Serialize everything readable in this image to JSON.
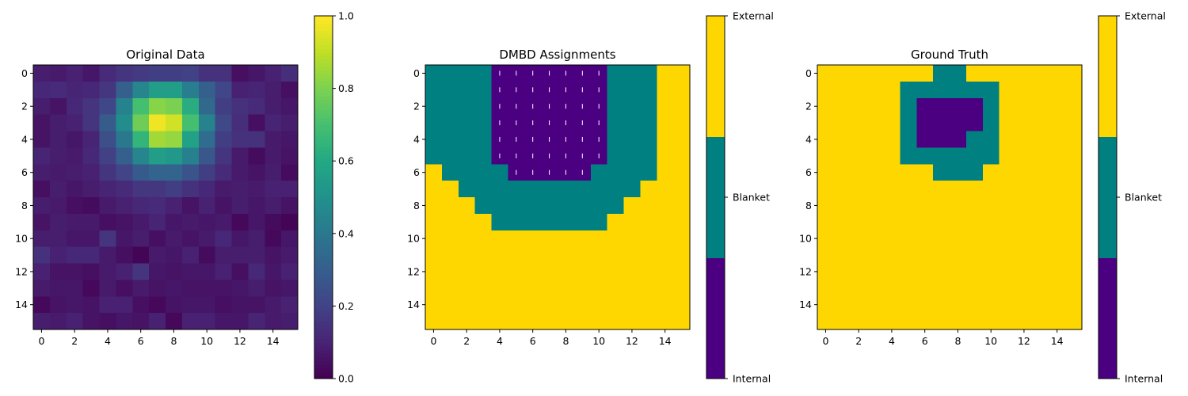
{
  "chart_data": [
    {
      "type": "heatmap",
      "title": "Original Data",
      "x_ticks": [
        0,
        2,
        4,
        6,
        8,
        10,
        12,
        14
      ],
      "y_ticks": [
        0,
        2,
        4,
        6,
        8,
        10,
        12,
        14
      ],
      "xlim": [
        -0.5,
        15.5
      ],
      "ylim": [
        15.5,
        -0.5
      ],
      "colormap": "viridis",
      "colorbar": {
        "range": [
          0,
          1
        ],
        "ticks": [
          "0.0",
          "0.2",
          "0.4",
          "0.6",
          "0.8",
          "1.0"
        ]
      },
      "values": [
        [
          0.08,
          0.07,
          0.09,
          0.06,
          0.12,
          0.15,
          0.17,
          0.18,
          0.18,
          0.19,
          0.14,
          0.14,
          0.04,
          0.06,
          0.09,
          0.13
        ],
        [
          0.11,
          0.12,
          0.1,
          0.11,
          0.16,
          0.3,
          0.45,
          0.55,
          0.55,
          0.42,
          0.3,
          0.21,
          0.09,
          0.1,
          0.08,
          0.04
        ],
        [
          0.08,
          0.05,
          0.11,
          0.15,
          0.21,
          0.44,
          0.7,
          0.82,
          0.8,
          0.62,
          0.34,
          0.18,
          0.14,
          0.12,
          0.08,
          0.06
        ],
        [
          0.05,
          0.08,
          0.09,
          0.15,
          0.29,
          0.48,
          0.78,
          0.98,
          0.93,
          0.7,
          0.44,
          0.22,
          0.13,
          0.04,
          0.1,
          0.08
        ],
        [
          0.05,
          0.08,
          0.06,
          0.1,
          0.24,
          0.4,
          0.65,
          0.86,
          0.84,
          0.57,
          0.35,
          0.18,
          0.14,
          0.14,
          0.07,
          0.06
        ],
        [
          0.1,
          0.08,
          0.07,
          0.11,
          0.19,
          0.3,
          0.45,
          0.55,
          0.53,
          0.43,
          0.27,
          0.15,
          0.07,
          0.03,
          0.07,
          0.05
        ],
        [
          0.08,
          0.07,
          0.08,
          0.09,
          0.15,
          0.2,
          0.28,
          0.32,
          0.32,
          0.26,
          0.18,
          0.12,
          0.07,
          0.05,
          0.08,
          0.03
        ],
        [
          0.04,
          0.08,
          0.06,
          0.08,
          0.1,
          0.12,
          0.16,
          0.16,
          0.18,
          0.14,
          0.11,
          0.07,
          0.08,
          0.07,
          0.09,
          0.09
        ],
        [
          0.08,
          0.07,
          0.04,
          0.03,
          0.07,
          0.09,
          0.11,
          0.12,
          0.09,
          0.05,
          0.09,
          0.05,
          0.08,
          0.06,
          0.08,
          0.05
        ],
        [
          0.05,
          0.08,
          0.07,
          0.07,
          0.04,
          0.05,
          0.07,
          0.1,
          0.06,
          0.07,
          0.06,
          0.07,
          0.02,
          0.06,
          0.03,
          0.01
        ],
        [
          0.08,
          0.08,
          0.06,
          0.06,
          0.15,
          0.06,
          0.08,
          0.04,
          0.07,
          0.05,
          0.07,
          0.11,
          0.06,
          0.08,
          0.02,
          0.06
        ],
        [
          0.14,
          0.09,
          0.11,
          0.11,
          0.07,
          0.04,
          0.01,
          0.07,
          0.06,
          0.09,
          0.03,
          0.08,
          0.08,
          0.08,
          0.05,
          0.07
        ],
        [
          0.09,
          0.05,
          0.05,
          0.04,
          0.07,
          0.09,
          0.15,
          0.06,
          0.05,
          0.06,
          0.06,
          0.09,
          0.04,
          0.11,
          0.06,
          0.09
        ],
        [
          0.07,
          0.06,
          0.06,
          0.02,
          0.07,
          0.04,
          0.07,
          0.05,
          0.06,
          0.05,
          0.05,
          0.05,
          0.06,
          0.08,
          0.05,
          0.06
        ],
        [
          0.02,
          0.05,
          0.06,
          0.05,
          0.09,
          0.09,
          0.04,
          0.02,
          0.05,
          0.06,
          0.06,
          0.04,
          0.05,
          0.05,
          0.07,
          0.09
        ],
        [
          0.08,
          0.07,
          0.09,
          0.05,
          0.04,
          0.06,
          0.05,
          0.09,
          0.02,
          0.09,
          0.09,
          0.06,
          0.06,
          0.1,
          0.07,
          0.08
        ]
      ]
    },
    {
      "type": "heatmap",
      "title": "DMBD Assignments",
      "x_ticks": [
        0,
        2,
        4,
        6,
        8,
        10,
        12,
        14
      ],
      "y_ticks": [
        0,
        2,
        4,
        6,
        8,
        10,
        12,
        14
      ],
      "xlim": [
        -0.5,
        15.5
      ],
      "ylim": [
        15.5,
        -0.5
      ],
      "categories": [
        "Internal",
        "Blanket",
        "External"
      ],
      "colorbar": {
        "ticks": [
          "Internal",
          "Blanket",
          "External"
        ]
      },
      "marker_cells_note": "internal cells marked with short white ticks",
      "values": [
        [
          1,
          1,
          1,
          1,
          0,
          0,
          0,
          0,
          0,
          0,
          0,
          1,
          1,
          1,
          2,
          2
        ],
        [
          1,
          1,
          1,
          1,
          0,
          0,
          0,
          0,
          0,
          0,
          0,
          1,
          1,
          1,
          2,
          2
        ],
        [
          1,
          1,
          1,
          1,
          0,
          0,
          0,
          0,
          0,
          0,
          0,
          1,
          1,
          1,
          2,
          2
        ],
        [
          1,
          1,
          1,
          1,
          0,
          0,
          0,
          0,
          0,
          0,
          0,
          1,
          1,
          1,
          2,
          2
        ],
        [
          1,
          1,
          1,
          1,
          0,
          0,
          0,
          0,
          0,
          0,
          0,
          1,
          1,
          1,
          2,
          2
        ],
        [
          1,
          1,
          1,
          1,
          0,
          0,
          0,
          0,
          0,
          0,
          0,
          1,
          1,
          1,
          2,
          2
        ],
        [
          2,
          1,
          1,
          1,
          1,
          0,
          0,
          0,
          0,
          0,
          1,
          1,
          1,
          1,
          2,
          2
        ],
        [
          2,
          2,
          1,
          1,
          1,
          1,
          1,
          1,
          1,
          1,
          1,
          1,
          1,
          2,
          2,
          2
        ],
        [
          2,
          2,
          2,
          1,
          1,
          1,
          1,
          1,
          1,
          1,
          1,
          1,
          2,
          2,
          2,
          2
        ],
        [
          2,
          2,
          2,
          2,
          1,
          1,
          1,
          1,
          1,
          1,
          1,
          2,
          2,
          2,
          2,
          2
        ],
        [
          2,
          2,
          2,
          2,
          2,
          2,
          2,
          2,
          2,
          2,
          2,
          2,
          2,
          2,
          2,
          2
        ],
        [
          2,
          2,
          2,
          2,
          2,
          2,
          2,
          2,
          2,
          2,
          2,
          2,
          2,
          2,
          2,
          2
        ],
        [
          2,
          2,
          2,
          2,
          2,
          2,
          2,
          2,
          2,
          2,
          2,
          2,
          2,
          2,
          2,
          2
        ],
        [
          2,
          2,
          2,
          2,
          2,
          2,
          2,
          2,
          2,
          2,
          2,
          2,
          2,
          2,
          2,
          2
        ],
        [
          2,
          2,
          2,
          2,
          2,
          2,
          2,
          2,
          2,
          2,
          2,
          2,
          2,
          2,
          2,
          2
        ],
        [
          2,
          2,
          2,
          2,
          2,
          2,
          2,
          2,
          2,
          2,
          2,
          2,
          2,
          2,
          2,
          2
        ]
      ]
    },
    {
      "type": "heatmap",
      "title": "Ground Truth",
      "x_ticks": [
        0,
        2,
        4,
        6,
        8,
        10,
        12,
        14
      ],
      "y_ticks": [
        0,
        2,
        4,
        6,
        8,
        10,
        12,
        14
      ],
      "xlim": [
        -0.5,
        15.5
      ],
      "ylim": [
        15.5,
        -0.5
      ],
      "categories": [
        "Internal",
        "Blanket",
        "External"
      ],
      "colorbar": {
        "ticks": [
          "Internal",
          "Blanket",
          "External"
        ]
      },
      "values": [
        [
          2,
          2,
          2,
          2,
          2,
          2,
          2,
          1,
          1,
          2,
          2,
          2,
          2,
          2,
          2,
          2
        ],
        [
          2,
          2,
          2,
          2,
          2,
          1,
          1,
          1,
          1,
          1,
          1,
          2,
          2,
          2,
          2,
          2
        ],
        [
          2,
          2,
          2,
          2,
          2,
          1,
          0,
          0,
          0,
          0,
          1,
          2,
          2,
          2,
          2,
          2
        ],
        [
          2,
          2,
          2,
          2,
          2,
          1,
          0,
          0,
          0,
          0,
          1,
          2,
          2,
          2,
          2,
          2
        ],
        [
          2,
          2,
          2,
          2,
          2,
          1,
          0,
          0,
          0,
          1,
          1,
          2,
          2,
          2,
          2,
          2
        ],
        [
          2,
          2,
          2,
          2,
          2,
          1,
          1,
          1,
          1,
          1,
          1,
          2,
          2,
          2,
          2,
          2
        ],
        [
          2,
          2,
          2,
          2,
          2,
          2,
          2,
          1,
          1,
          1,
          2,
          2,
          2,
          2,
          2,
          2
        ],
        [
          2,
          2,
          2,
          2,
          2,
          2,
          2,
          2,
          2,
          2,
          2,
          2,
          2,
          2,
          2,
          2
        ],
        [
          2,
          2,
          2,
          2,
          2,
          2,
          2,
          2,
          2,
          2,
          2,
          2,
          2,
          2,
          2,
          2
        ],
        [
          2,
          2,
          2,
          2,
          2,
          2,
          2,
          2,
          2,
          2,
          2,
          2,
          2,
          2,
          2,
          2
        ],
        [
          2,
          2,
          2,
          2,
          2,
          2,
          2,
          2,
          2,
          2,
          2,
          2,
          2,
          2,
          2,
          2
        ],
        [
          2,
          2,
          2,
          2,
          2,
          2,
          2,
          2,
          2,
          2,
          2,
          2,
          2,
          2,
          2,
          2
        ],
        [
          2,
          2,
          2,
          2,
          2,
          2,
          2,
          2,
          2,
          2,
          2,
          2,
          2,
          2,
          2,
          2
        ],
        [
          2,
          2,
          2,
          2,
          2,
          2,
          2,
          2,
          2,
          2,
          2,
          2,
          2,
          2,
          2,
          2
        ],
        [
          2,
          2,
          2,
          2,
          2,
          2,
          2,
          2,
          2,
          2,
          2,
          2,
          2,
          2,
          2,
          2
        ],
        [
          2,
          2,
          2,
          2,
          2,
          2,
          2,
          2,
          2,
          2,
          2,
          2,
          2,
          2,
          2,
          2
        ]
      ]
    }
  ],
  "colors": {
    "internal": "#4b0082",
    "blanket": "#008080",
    "external": "#ffd700"
  }
}
